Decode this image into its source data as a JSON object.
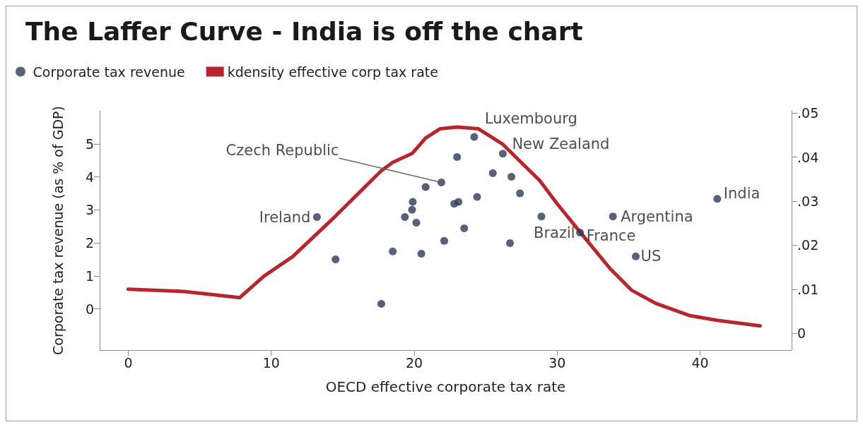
{
  "chart_data": {
    "type": "scatter",
    "title": "The Laffer Curve - India is off the chart",
    "xlabel": "OECD effective corporate tax rate",
    "ylabel": "Corporate tax revenue (as % of GDP)",
    "xlim": [
      -2,
      46.4
    ],
    "xticks": [
      0,
      10,
      20,
      30,
      40
    ],
    "ylim": [
      -1.25,
      6.0
    ],
    "yticks": [
      0,
      1,
      2,
      3,
      4,
      5
    ],
    "y2lim": [
      -0.0038,
      0.0505
    ],
    "y2ticks": [
      0,
      {
        "value": 0.01,
        "label": ".01"
      },
      {
        "value": 0.02,
        "label": ".02"
      },
      {
        "value": 0.03,
        "label": ".03"
      },
      {
        "value": 0.04,
        "label": ".04"
      },
      {
        "value": 0.05,
        "label": ".05"
      }
    ],
    "grid": false,
    "legend": "top left",
    "series": [
      {
        "name": "Corporate tax revenue",
        "marker": "circle",
        "color": "#2e3a59",
        "x": [
          13.2,
          14.5,
          17.7,
          18.5,
          20.5,
          20.8,
          19.9,
          19.85,
          19.35,
          20.15,
          22.1,
          21.9,
          23.0,
          24.2,
          26.2,
          25.5,
          26.8,
          27.4,
          24.4,
          22.8,
          23.1,
          23.5,
          26.7,
          28.9,
          31.6,
          33.9,
          35.5,
          41.2
        ],
        "values": [
          2.78,
          1.5,
          0.15,
          1.74,
          1.67,
          3.69,
          3.24,
          3.0,
          2.78,
          2.61,
          2.06,
          3.83,
          4.6,
          5.21,
          4.7,
          4.11,
          4.0,
          3.5,
          3.39,
          3.18,
          3.24,
          2.44,
          1.99,
          2.8,
          2.31,
          2.8,
          1.59,
          3.33
        ]
      },
      {
        "name": "kdensity effective corp tax rate",
        "type": "line",
        "axis": "y2",
        "marker": "none",
        "line_style": "solid",
        "color": "#b5272d",
        "x": [
          0,
          3.9,
          7.8,
          9.5,
          11.5,
          14.4,
          17.7,
          18.5,
          19.85,
          20.8,
          21.8,
          23.0,
          24.5,
          26.2,
          28.8,
          30.0,
          31.9,
          33.7,
          35.2,
          36.9,
          39.3,
          41.1,
          44.2
        ],
        "values": [
          0.01,
          0.0095,
          0.0081,
          0.013,
          0.0174,
          0.0263,
          0.0369,
          0.0388,
          0.0408,
          0.0443,
          0.0464,
          0.0468,
          0.0464,
          0.0429,
          0.0346,
          0.0294,
          0.0218,
          0.0147,
          0.0098,
          0.0068,
          0.004,
          0.003,
          0.0017
        ]
      }
    ],
    "annotations": [
      {
        "text": "Ireland",
        "x": 13.2,
        "y": 2.78
      },
      {
        "text": "Czech Republic",
        "x": 21.9,
        "y": 3.83
      },
      {
        "text": "Luxembourg",
        "x": 24.2,
        "y": 5.21
      },
      {
        "text": "New Zealand",
        "x": 26.2,
        "y": 4.7
      },
      {
        "text": "Brazil",
        "x": 31.6,
        "y": 2.31
      },
      {
        "text": "France",
        "x": 31.6,
        "y": 2.31
      },
      {
        "text": "Argentina",
        "x": 33.9,
        "y": 2.8
      },
      {
        "text": "US",
        "x": 35.5,
        "y": 1.59
      },
      {
        "text": "India",
        "x": 41.2,
        "y": 3.33
      }
    ]
  }
}
